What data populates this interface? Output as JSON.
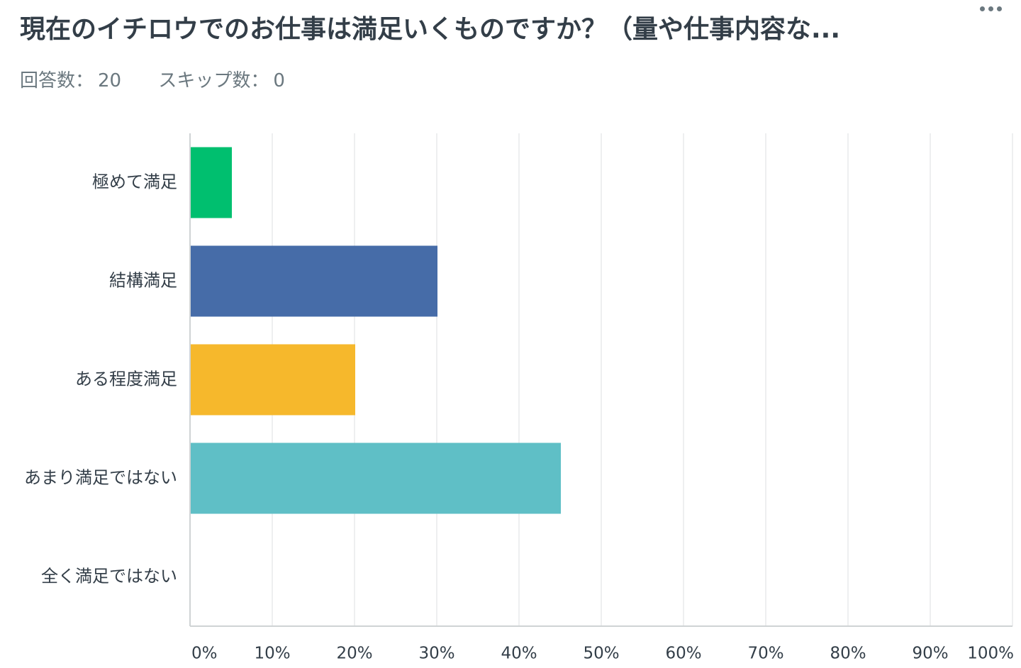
{
  "header": {
    "title": "現在のイチロウでのお仕事は満足いくものですか？（量や仕事内容な...",
    "responses_label": "回答数：",
    "responses_value": "20",
    "skipped_label": "スキップ数：",
    "skipped_value": "0",
    "more_icon": "more-horizontal-icon"
  },
  "chart_data": {
    "type": "bar",
    "orientation": "horizontal",
    "categories": [
      "極めて満足",
      "結構満足",
      "ある程度満足",
      "あまり満足ではない",
      "全く満足ではない"
    ],
    "values": [
      5,
      30,
      20,
      45,
      0
    ],
    "unit": "%",
    "colors": [
      "#00bf6f",
      "#466ca8",
      "#f6b82c",
      "#5fbfc6",
      "#999999"
    ],
    "xlim": [
      0,
      100
    ],
    "xticks": [
      "0%",
      "10%",
      "20%",
      "30%",
      "40%",
      "50%",
      "60%",
      "70%",
      "80%",
      "90%",
      "100%"
    ],
    "grid": true,
    "legend": "none"
  },
  "colors": {
    "text": "#333e48",
    "muted": "#6b787f",
    "gridline": "#e8eaeb",
    "axis": "#cfd3d5"
  }
}
